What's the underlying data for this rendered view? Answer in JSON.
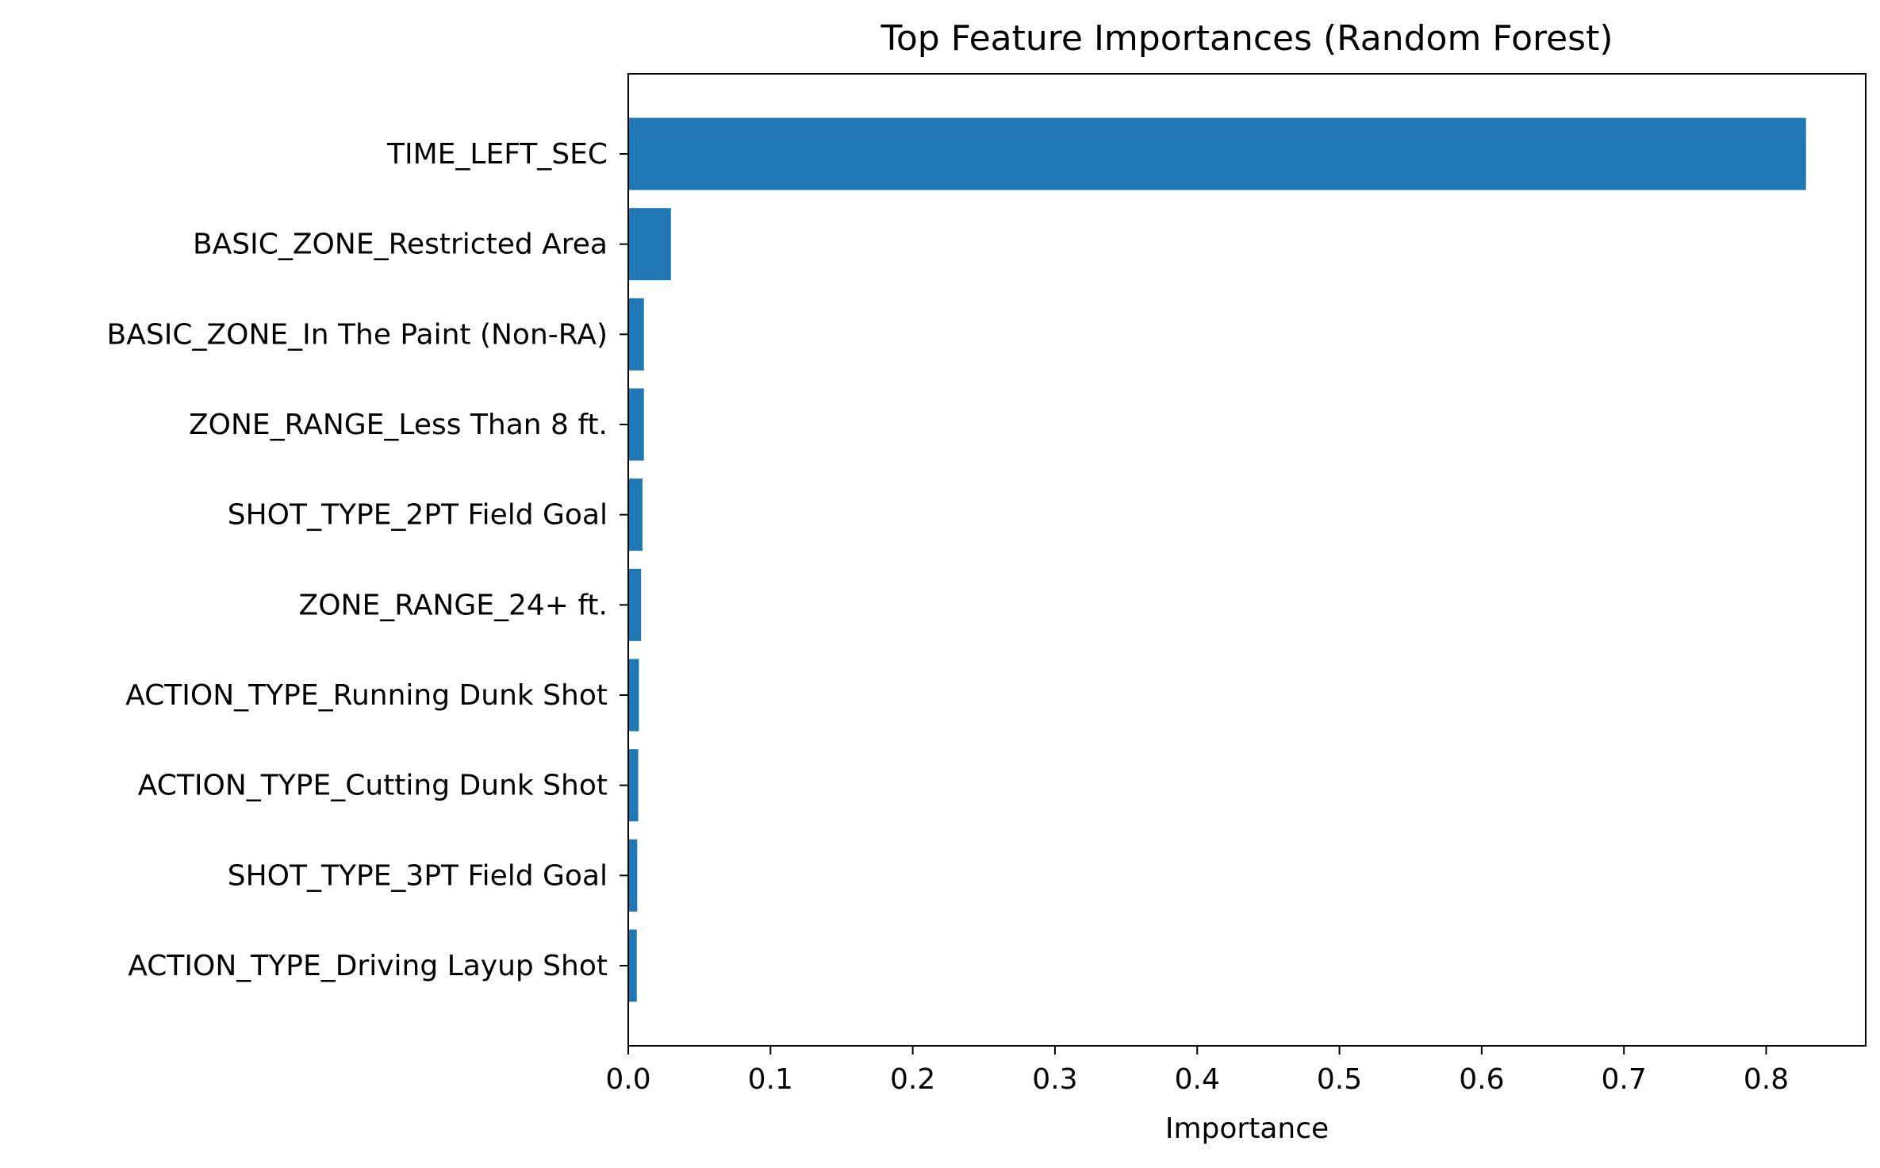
{
  "chart_data": {
    "type": "bar",
    "orientation": "horizontal",
    "title": "Top Feature Importances (Random Forest)",
    "xlabel": "Importance",
    "ylabel": "",
    "xlim": [
      0,
      0.87
    ],
    "xticks": [
      "0.0",
      "0.1",
      "0.2",
      "0.3",
      "0.4",
      "0.5",
      "0.6",
      "0.7",
      "0.8"
    ],
    "categories": [
      "TIME_LEFT_SEC",
      "BASIC_ZONE_Restricted Area",
      "BASIC_ZONE_In The Paint (Non-RA)",
      "ZONE_RANGE_Less Than 8 ft.",
      "SHOT_TYPE_2PT Field Goal",
      "ZONE_RANGE_24+ ft.",
      "ACTION_TYPE_Running Dunk Shot",
      "ACTION_TYPE_Cutting Dunk Shot",
      "SHOT_TYPE_3PT Field Goal",
      "ACTION_TYPE_Driving Layup Shot"
    ],
    "values": [
      0.828,
      0.03,
      0.011,
      0.011,
      0.01,
      0.009,
      0.0075,
      0.007,
      0.0063,
      0.006
    ],
    "bar_color": "#1f77b4",
    "grid": false,
    "legend": "none"
  }
}
